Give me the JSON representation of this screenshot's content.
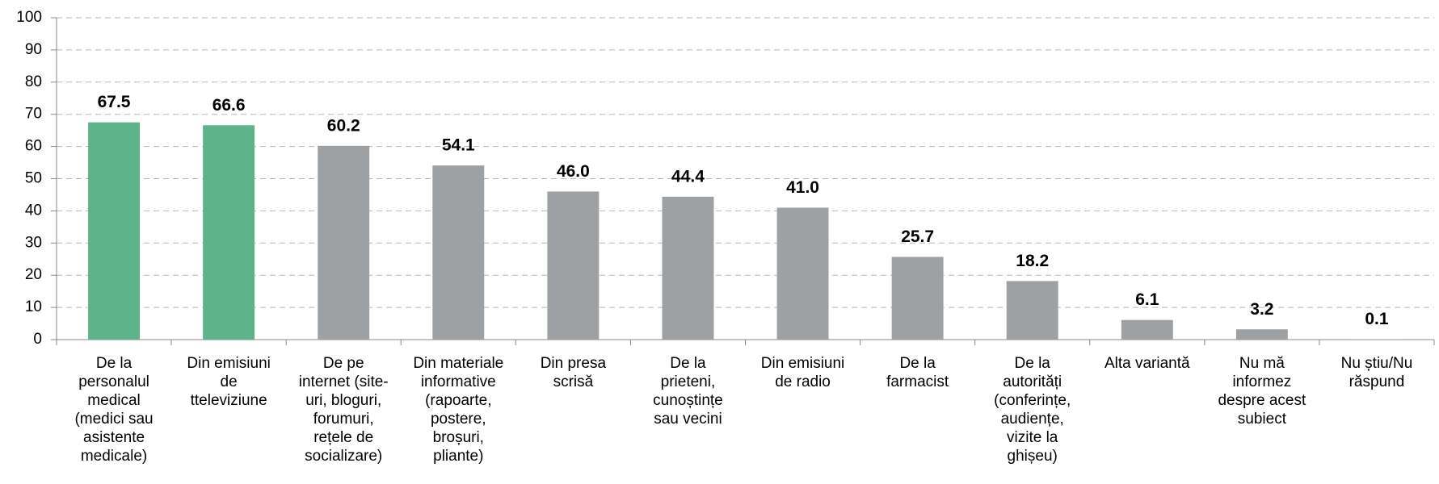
{
  "chart_data": {
    "type": "bar",
    "categories": [
      "De la\npersonalul\nmedical\n(medici sau\nasistente\nmedicale)",
      "Din emisiuni\nde\ntteleviziune",
      "De pe\ninternet (site-\nuri, bloguri,\nforumuri,\nrețele de\nsocializare)",
      "Din materiale\ninformative\n(rapoarte,\npostere,\nbroșuri,\npliante)",
      "Din presa\nscrisă",
      "De la\nprieteni,\ncunoștințe\nsau vecini",
      "Din emisiuni\nde radio",
      "De la\nfarmacist",
      "De la\nautorități\n(conferințe,\naudiențe,\nvizite la\nghișeu)",
      "Alta variantă",
      "Nu mă\ninformez\ndespre acest\nsubiect",
      "Nu știu/Nu\nrăspund"
    ],
    "values": [
      67.5,
      66.6,
      60.2,
      54.1,
      46.0,
      44.4,
      41.0,
      25.7,
      18.2,
      6.1,
      3.2,
      0.1
    ],
    "value_labels": [
      "67.5",
      "66.6",
      "60.2",
      "54.1",
      "46.0",
      "44.4",
      "41.0",
      "25.7",
      "18.2",
      "6.1",
      "3.2",
      "0.1"
    ],
    "colors": [
      "#5fb38b",
      "#5fb38b",
      "#9ea1a4",
      "#9ea1a4",
      "#9ea1a4",
      "#9ea1a4",
      "#9ea1a4",
      "#9ea1a4",
      "#9ea1a4",
      "#9ea1a4",
      "#9ea1a4",
      "#9ea1a4"
    ],
    "ylim": [
      0,
      100
    ],
    "yticks": [
      0,
      10,
      20,
      30,
      40,
      50,
      60,
      70,
      80,
      90,
      100
    ],
    "grid": true
  }
}
